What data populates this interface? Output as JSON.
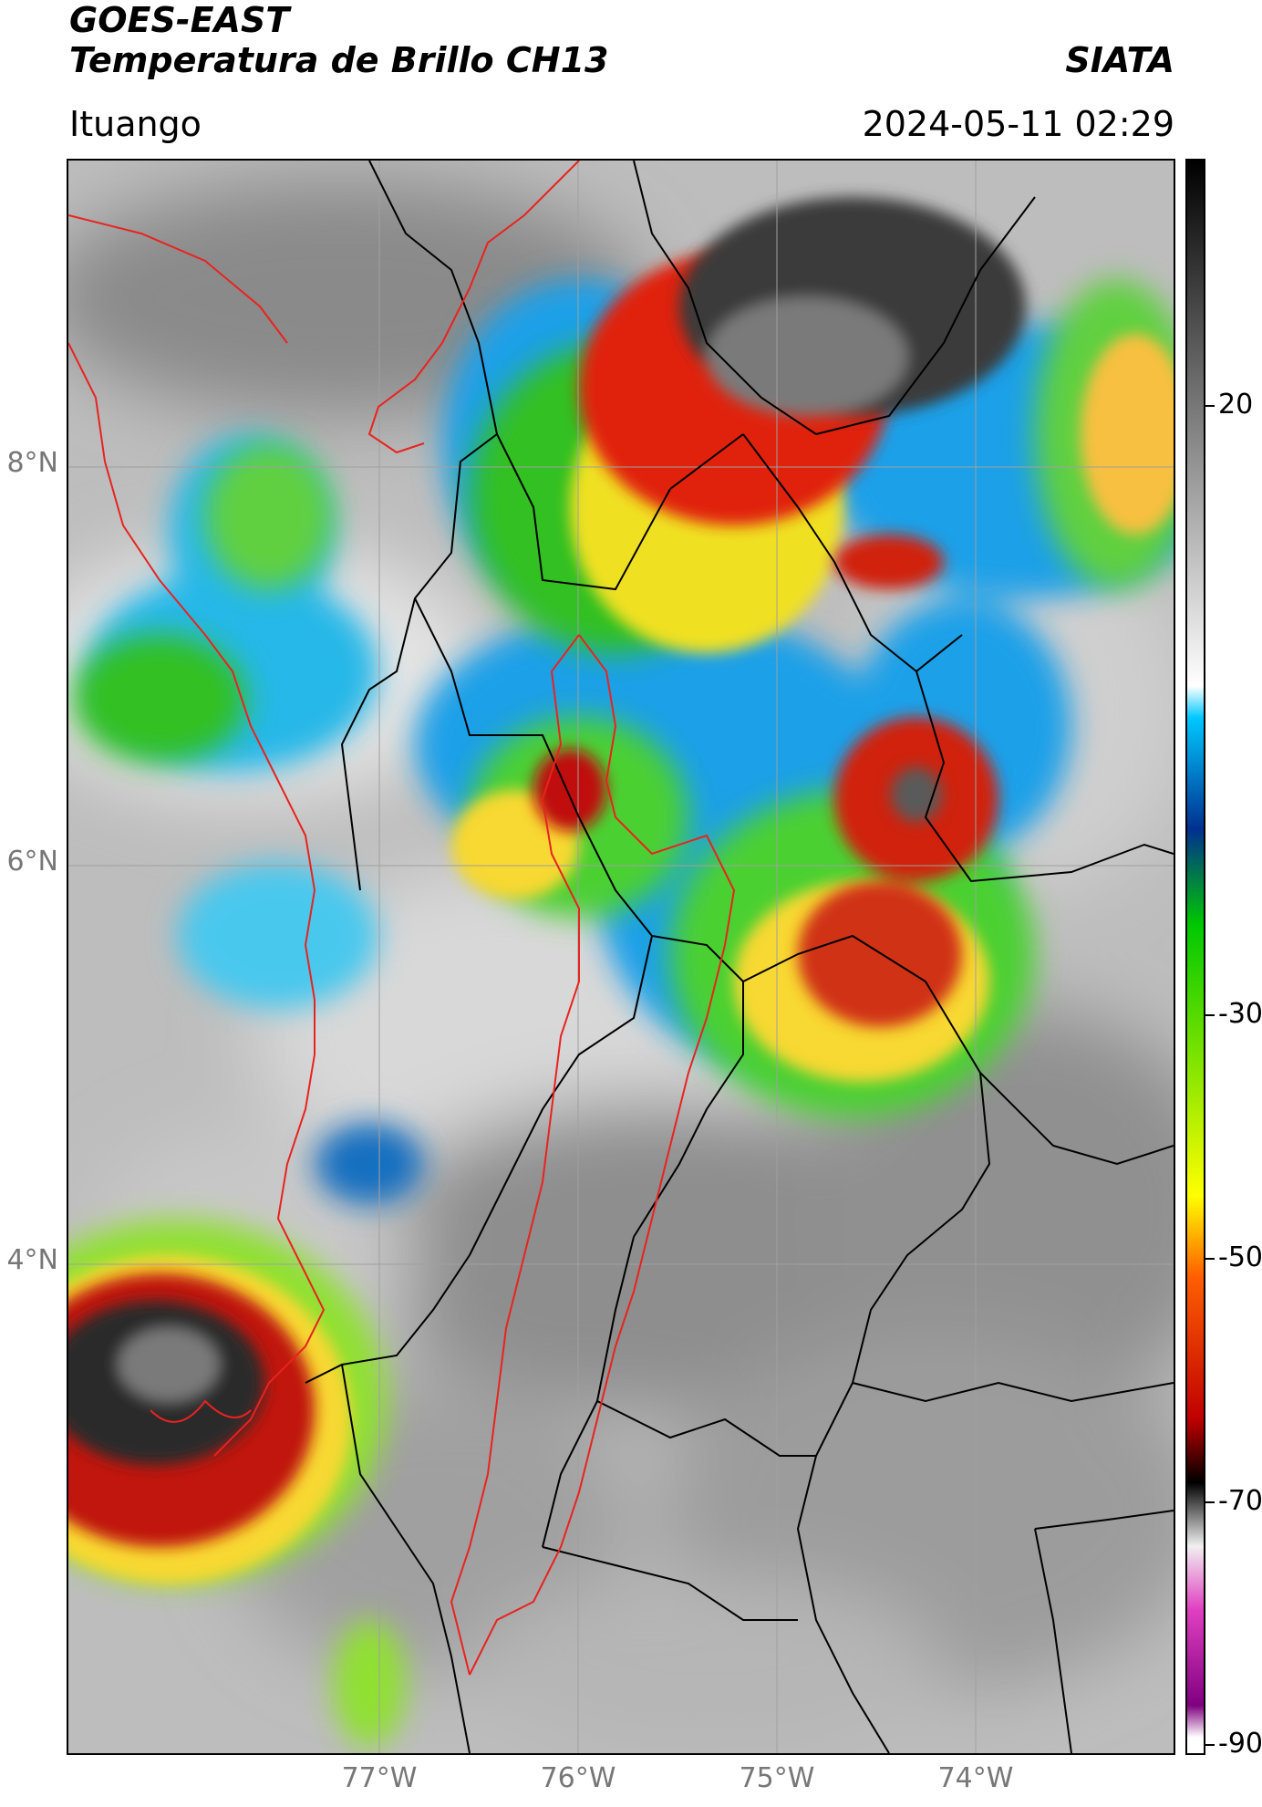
{
  "header": {
    "title_line1": "GOES-EAST",
    "title_line2": "Temperatura de Brillo CH13",
    "agency": "SIATA",
    "location": "Ituango",
    "datetime": "2024-05-11 02:29"
  },
  "map": {
    "lat_labels": [
      "8°N",
      "6°N",
      "4°N"
    ],
    "lon_labels": [
      "77°W",
      "76°W",
      "75°W",
      "74°W"
    ],
    "border_colors": {
      "national": "#e8231f",
      "regional": "#000000"
    }
  },
  "colorbar": {
    "ticks": [
      "20",
      "-30",
      "-50",
      "-70",
      "-90"
    ],
    "palette_top_to_bottom": [
      "#000000",
      "#ffffff",
      "#00c8ff",
      "#003090",
      "#00c800",
      "#ffff00",
      "#ff6000",
      "#c00000",
      "#000000",
      "#f0f0f0",
      "#e040c0",
      "#800080",
      "#ffffff"
    ]
  }
}
